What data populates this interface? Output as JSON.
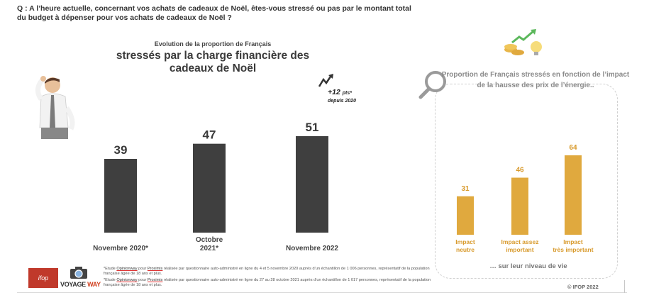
{
  "question": "Q : A l’heure actuelle, concernant vos achats de cadeaux de Noël, êtes-vous stressé ou pas par le montant total du budget à dépenser pour vos achats de cadeaux de Noël ?",
  "colors": {
    "dark_bar": "#3f3f3f",
    "gold_bar": "#e0a93e",
    "gold_text": "#d89a2c"
  },
  "chart_data": [
    {
      "type": "bar",
      "subtitle": "Evolution de la proportion de Français",
      "title": "stressés par la charge financière des cadeaux de Noël",
      "categories": [
        "Novembre 2020*",
        "Octobre 2021*",
        "Novembre 2022"
      ],
      "values": [
        39,
        47,
        51
      ],
      "ylim": [
        0,
        60
      ],
      "annotation": {
        "value": "+12",
        "unit": "pts*",
        "text": "depuis 2020"
      }
    },
    {
      "type": "bar",
      "title": "Proportion de Français stressés en fonction de l’impact de la hausse des prix de l’énergie..",
      "categories": [
        "Impact neutre",
        "Impact assez important",
        "Impact très important"
      ],
      "values": [
        31,
        46,
        64
      ],
      "ylim": [
        0,
        80
      ],
      "footer": "… sur leur niveau de vie"
    }
  ],
  "footnotes": {
    "note1": {
      "pre": "*Etude ",
      "link1": "Opinionway",
      "mid": " pour ",
      "link2": "Proximis",
      "post": " réalisée par questionnaire auto-administré en ligne du 4 et 5 novembre 2020 auprès d’un échantillon de 1 006 personnes, représentatif de la population française âgée de 18 ans et plus."
    },
    "note2": {
      "pre": "*Etude ",
      "link1": "Opinionway",
      "mid": " pour ",
      "link2": "Proximis",
      "post": " réalisée par questionnaire auto-administré en ligne du 27 au 28 octobre 2021 auprès d’un échantillon de 1 017 personnes, représentatif de la population française âgée de 18 ans et plus."
    }
  },
  "logos": {
    "ifop": "ifop",
    "voyage": "VOYAGE",
    "way": "WAY"
  },
  "copyright": "© IFOP 2022",
  "icons": [
    "stressed-man-illustration",
    "coins-lightbulb-arrow-icon",
    "magnifier-icon",
    "rising-arrow-icon",
    "camera-icon"
  ]
}
